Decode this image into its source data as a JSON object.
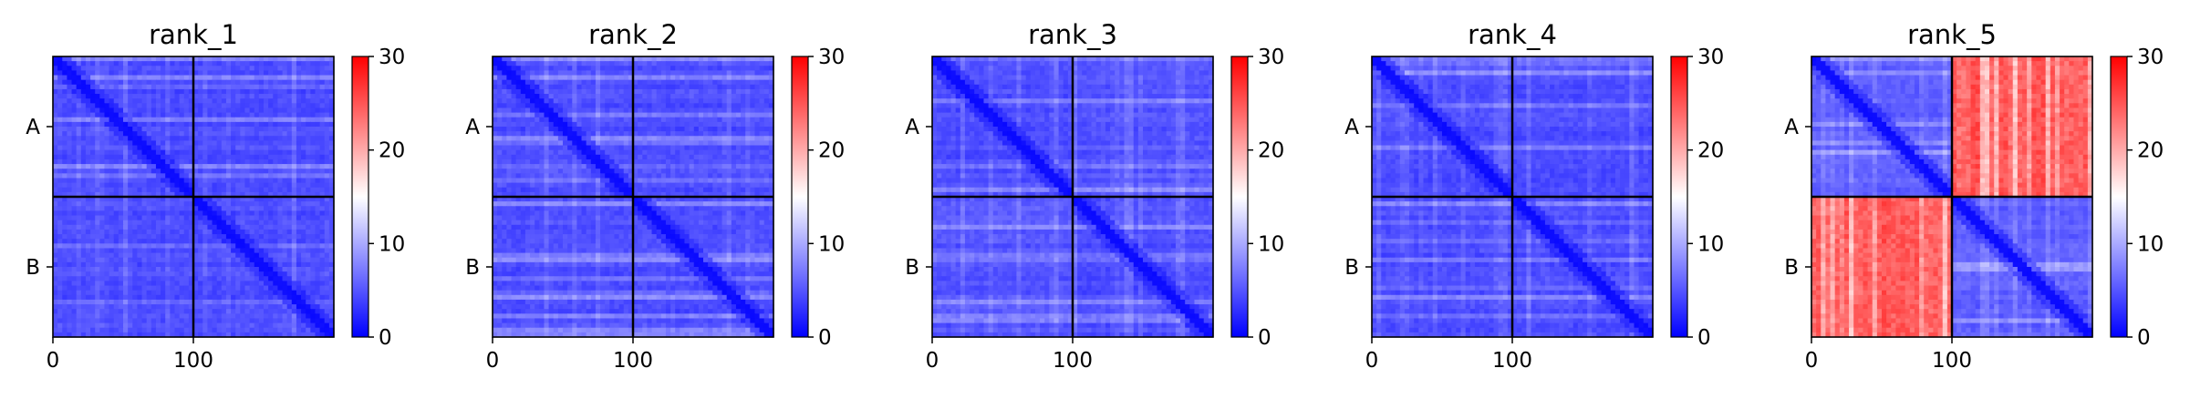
{
  "chart_data": [
    {
      "type": "heatmap",
      "title": "rank_1",
      "chains": [
        "A",
        "B"
      ],
      "x_ticks": [
        0,
        100
      ],
      "xlim": [
        0,
        200
      ],
      "boundary": 100,
      "colorbar": {
        "ticks": [
          0,
          10,
          20,
          30
        ],
        "range": [
          0,
          30
        ]
      },
      "pattern": {
        "intra_chain": 3,
        "inter_chain": 3
      }
    },
    {
      "type": "heatmap",
      "title": "rank_2",
      "chains": [
        "A",
        "B"
      ],
      "x_ticks": [
        0,
        100
      ],
      "xlim": [
        0,
        200
      ],
      "boundary": 100,
      "colorbar": {
        "ticks": [
          0,
          10,
          20,
          30
        ],
        "range": [
          0,
          30
        ]
      },
      "pattern": {
        "intra_chain": 3,
        "inter_chain": 3
      }
    },
    {
      "type": "heatmap",
      "title": "rank_3",
      "chains": [
        "A",
        "B"
      ],
      "x_ticks": [
        0,
        100
      ],
      "xlim": [
        0,
        200
      ],
      "boundary": 100,
      "colorbar": {
        "ticks": [
          0,
          10,
          20,
          30
        ],
        "range": [
          0,
          30
        ]
      },
      "pattern": {
        "intra_chain": 3,
        "inter_chain": 3.5
      }
    },
    {
      "type": "heatmap",
      "title": "rank_4",
      "chains": [
        "A",
        "B"
      ],
      "x_ticks": [
        0,
        100
      ],
      "xlim": [
        0,
        200
      ],
      "boundary": 100,
      "colorbar": {
        "ticks": [
          0,
          10,
          20,
          30
        ],
        "range": [
          0,
          30
        ]
      },
      "pattern": {
        "intra_chain": 3,
        "inter_chain": 3
      }
    },
    {
      "type": "heatmap",
      "title": "rank_5",
      "chains": [
        "A",
        "B"
      ],
      "x_ticks": [
        0,
        100
      ],
      "xlim": [
        0,
        200
      ],
      "boundary": 100,
      "colorbar": {
        "ticks": [
          0,
          10,
          20,
          30
        ],
        "range": [
          0,
          30
        ]
      },
      "pattern": {
        "intra_chain": 4,
        "inter_chain": 24
      }
    }
  ],
  "colors": {
    "low": "#0000ff",
    "mid": "#ffffff",
    "high": "#ff0000",
    "divider": "#000000"
  }
}
